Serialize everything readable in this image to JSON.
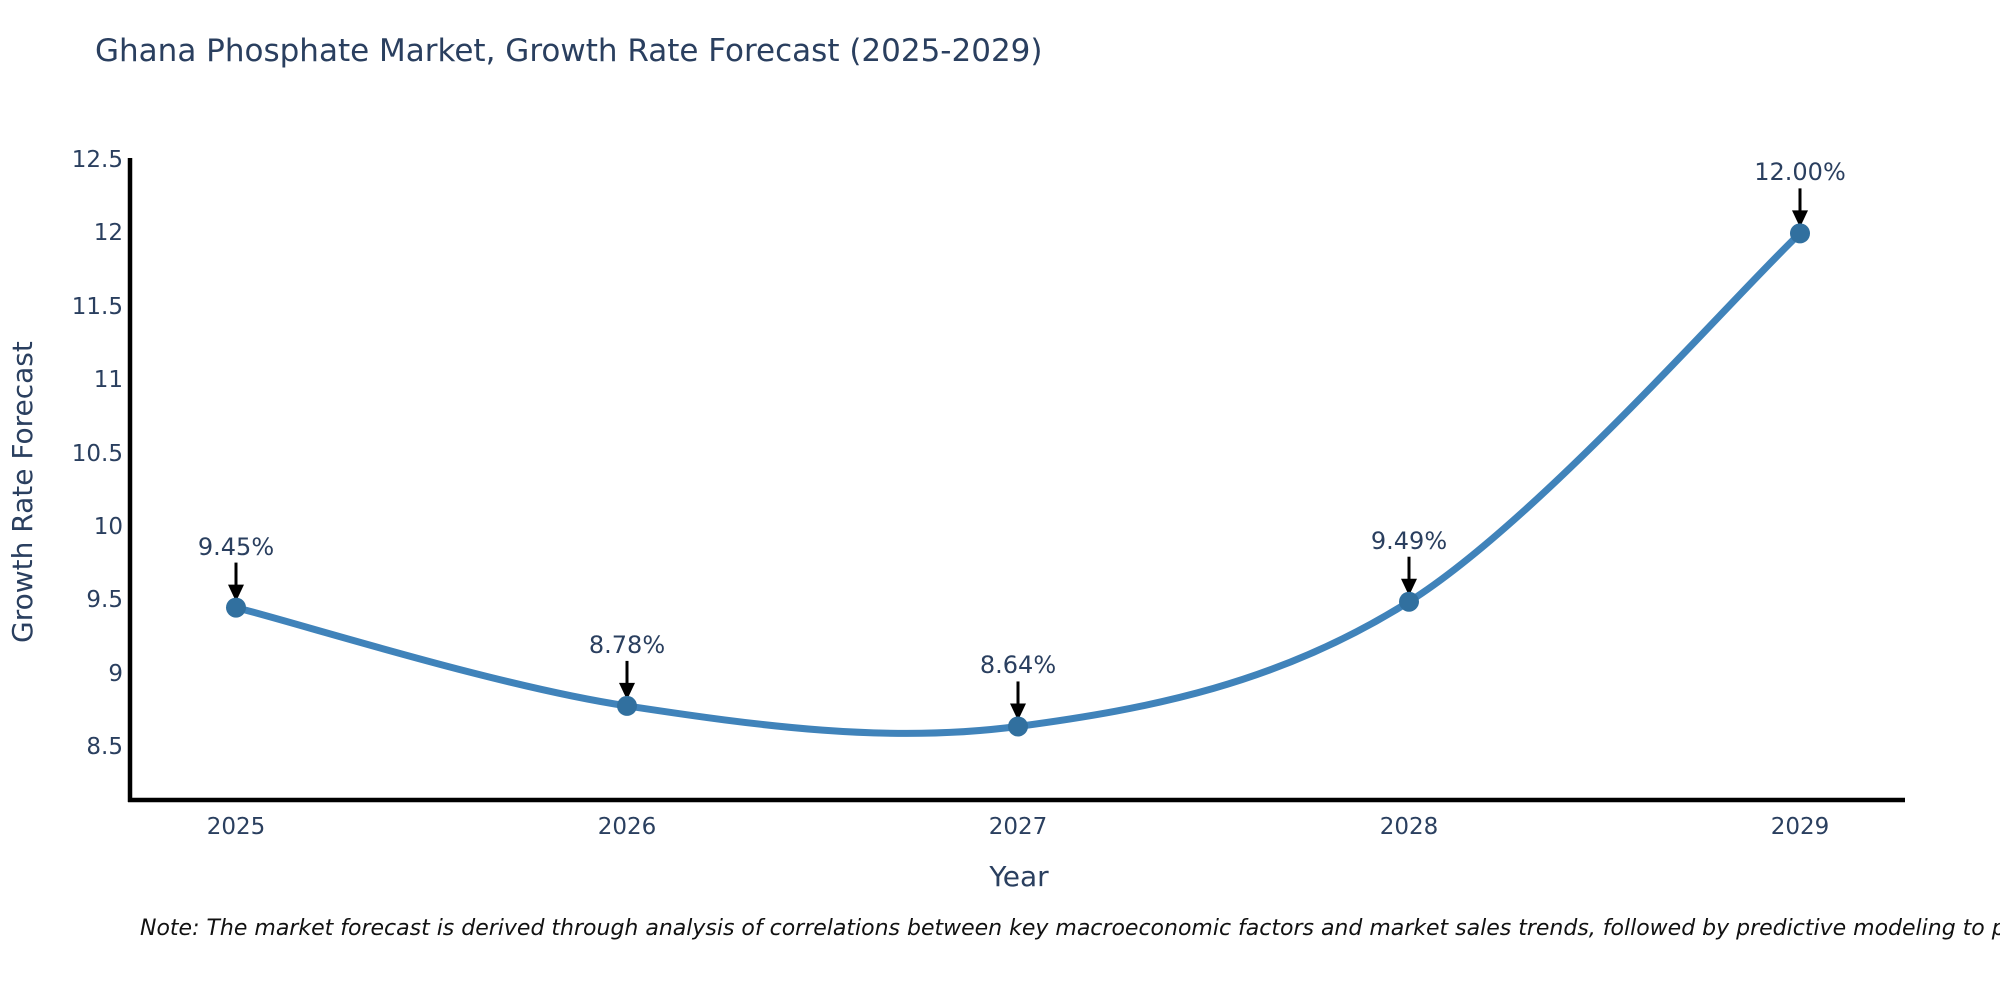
{
  "title": {
    "text": "Ghana Phosphate Market, Growth Rate Forecast (2025-2029)"
  },
  "note": {
    "text": "Note: The market forecast is derived through analysis of correlations between key macroeconomic factors and market sales trends, followed by predictive modeling to project future sales."
  },
  "chart_data": {
    "type": "line",
    "line_shape": "spline",
    "title": "Ghana Phosphate Market, Growth Rate Forecast (2025-2029)",
    "xlabel": "Year",
    "ylabel": "Growth Rate Forecast",
    "x": [
      2025,
      2026,
      2027,
      2028,
      2029
    ],
    "x_tick_labels": [
      "2025",
      "2026",
      "2027",
      "2028",
      "2029"
    ],
    "series": [
      {
        "name": "Growth Rate Forecast",
        "values": [
          9.45,
          8.78,
          8.64,
          9.49,
          12.0
        ]
      }
    ],
    "point_labels": [
      "9.45%",
      "8.78%",
      "8.64%",
      "9.49%",
      "12.00%"
    ],
    "y_ticks": [
      8.5,
      9,
      9.5,
      10,
      10.5,
      11,
      11.5,
      12,
      12.5
    ],
    "ylim": [
      8.14,
      12.5
    ],
    "xlim": [
      2024.74,
      2029.27
    ],
    "grid": false,
    "legend": "none",
    "annotation_arrows": true,
    "colors": {
      "line": "#4083ba",
      "marker": "#31709f",
      "axis": "#000000",
      "tick_text": "#2a3f5f",
      "annotation_text": "#2a3f5f",
      "arrow": "#000000",
      "note_text": "#111111",
      "background": "#ffffff"
    }
  }
}
